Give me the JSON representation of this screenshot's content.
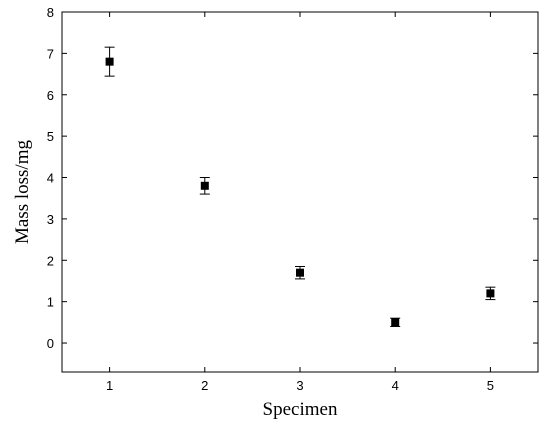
{
  "chart_data": {
    "type": "scatter",
    "xlabel": "Specimen",
    "ylabel": "Mass loss/mg",
    "xlim": [
      0.5,
      5.5
    ],
    "ylim": [
      -0.7,
      8
    ],
    "xticks": [
      1,
      2,
      3,
      4,
      5
    ],
    "yticks": [
      0,
      1,
      2,
      3,
      4,
      5,
      6,
      7,
      8
    ],
    "grid": false,
    "legend": "none",
    "marker": "square",
    "color": "#000000",
    "series": [
      {
        "x": [
          1,
          2,
          3,
          4,
          5
        ],
        "y": [
          6.8,
          3.8,
          1.7,
          0.5,
          1.2
        ],
        "error": [
          0.35,
          0.2,
          0.15,
          0.1,
          0.15
        ]
      }
    ]
  }
}
